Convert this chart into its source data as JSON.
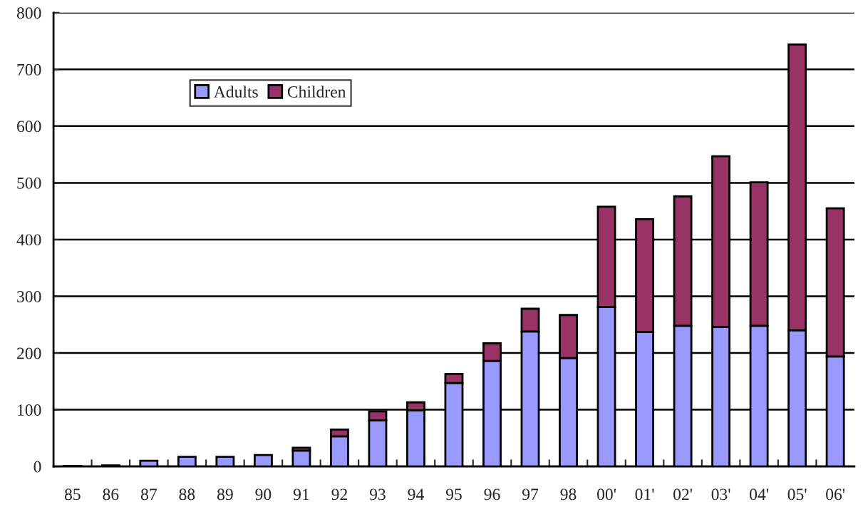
{
  "chart_data": {
    "type": "bar",
    "stacked": true,
    "categories": [
      "85",
      "86",
      "87",
      "88",
      "89",
      "90",
      "91",
      "92",
      "93",
      "94",
      "95",
      "96",
      "97",
      "98",
      "00'",
      "01'",
      "02'",
      "03'",
      "04'",
      "05'",
      "06'"
    ],
    "series": [
      {
        "name": "Adults",
        "color": "#9999ff",
        "values": [
          1,
          2,
          10,
          17,
          17,
          20,
          28,
          53,
          81,
          99,
          147,
          186,
          238,
          191,
          281,
          237,
          248,
          246,
          248,
          240,
          194
        ]
      },
      {
        "name": "Children",
        "color": "#993366",
        "values": [
          null,
          null,
          null,
          null,
          null,
          null,
          5,
          12,
          16,
          14,
          16,
          31,
          40,
          76,
          177,
          199,
          228,
          301,
          253,
          504,
          261
        ]
      }
    ],
    "ylim": [
      0,
      800
    ],
    "yticks": [
      0,
      100,
      200,
      300,
      400,
      500,
      600,
      700,
      800
    ],
    "grid": "y",
    "legend": "top left"
  }
}
